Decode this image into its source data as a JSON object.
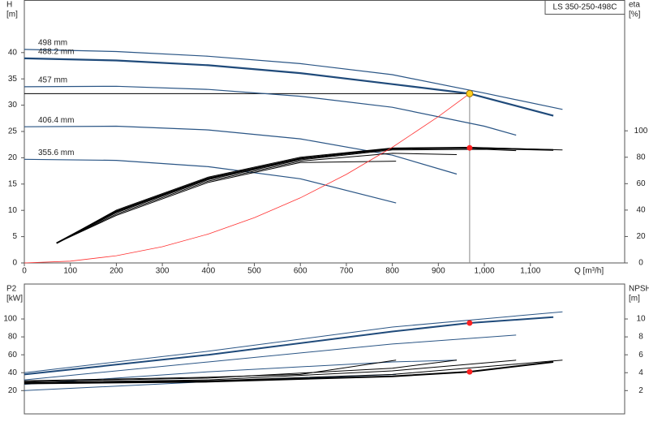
{
  "chart_data": [
    {
      "type": "line",
      "title": "LS 350-250-498C",
      "x_label": "Q [m³/h]",
      "y_label": [
        "H",
        "[m]"
      ],
      "y2_label": [
        "eta",
        "[%]"
      ],
      "xlim": [
        0,
        1305
      ],
      "xticks": [
        0,
        100,
        200,
        300,
        400,
        500,
        600,
        700,
        800,
        900,
        {
          "value": 1000,
          "label": "1,000"
        },
        {
          "value": 1100,
          "label": "1,100"
        }
      ],
      "ylim": [
        0,
        50
      ],
      "yticks": [
        0,
        5,
        10,
        15,
        20,
        25,
        30,
        35,
        40
      ],
      "y2lim": [
        0,
        199
      ],
      "y2ticks": [
        0,
        20,
        40,
        60,
        80,
        100
      ],
      "grid": false,
      "series": [
        {
          "name": "498 mm",
          "color": "#2a5585",
          "line_width": 1.2,
          "x": [
            0,
            200,
            400,
            600,
            800,
            1000,
            1170
          ],
          "values": [
            40.6,
            40.2,
            39.3,
            37.9,
            35.8,
            32.3,
            29.2
          ]
        },
        {
          "name": "488.2 mm",
          "color": "#1f4a7a",
          "line_width": 2.2,
          "x": [
            0,
            200,
            400,
            600,
            800,
            968,
            1150
          ],
          "values": [
            38.9,
            38.5,
            37.6,
            36.1,
            34.0,
            32.2,
            28.0
          ]
        },
        {
          "name": "457 mm",
          "color": "#2a5585",
          "line_width": 1.2,
          "x": [
            0,
            200,
            400,
            600,
            800,
            1000,
            1069
          ],
          "values": [
            33.5,
            33.6,
            33.0,
            31.7,
            29.6,
            26.0,
            24.3
          ]
        },
        {
          "name": "406.4 mm",
          "color": "#2a5585",
          "line_width": 1.2,
          "x": [
            0,
            200,
            400,
            600,
            800,
            940
          ],
          "values": [
            25.9,
            26.0,
            25.3,
            23.6,
            20.5,
            16.9
          ]
        },
        {
          "name": "355.6 mm",
          "color": "#2a5585",
          "line_width": 1.2,
          "x": [
            0,
            200,
            400,
            600,
            808
          ],
          "values": [
            19.7,
            19.5,
            18.3,
            16.0,
            11.4
          ]
        },
        {
          "color": "#000000",
          "axis": "y2",
          "line_width": 1,
          "x": [
            70,
            200,
            400,
            600,
            800,
            968,
            1170
          ],
          "values": [
            15,
            40,
            65,
            80,
            87,
            87.5,
            85.5
          ]
        },
        {
          "color": "#000000",
          "axis": "y2",
          "line_width": 2,
          "x": [
            70,
            200,
            400,
            600,
            800,
            968,
            1150
          ],
          "values": [
            15,
            39,
            64,
            79,
            86.5,
            87.1,
            85.5
          ]
        },
        {
          "color": "#000000",
          "axis": "y2",
          "line_width": 1,
          "x": [
            70,
            200,
            400,
            600,
            800,
            1000,
            1069
          ],
          "values": [
            15,
            38,
            63,
            78,
            85.5,
            86,
            85
          ]
        },
        {
          "color": "#000000",
          "axis": "y2",
          "line_width": 1,
          "x": [
            70,
            200,
            400,
            600,
            800,
            940
          ],
          "values": [
            15,
            37,
            62,
            77,
            83,
            82
          ]
        },
        {
          "color": "#000000",
          "axis": "y2",
          "line_width": 1,
          "x": [
            70,
            200,
            400,
            600,
            808
          ],
          "values": [
            15,
            36,
            61,
            76,
            77
          ]
        },
        {
          "color": "#ff3030",
          "line_width": 0.8,
          "x": [
            0,
            100,
            200,
            300,
            400,
            500,
            600,
            700,
            800,
            900,
            968
          ],
          "values": [
            0,
            0.34,
            1.37,
            3.09,
            5.5,
            8.59,
            12.37,
            16.84,
            21.99,
            27.83,
            32.2
          ]
        }
      ],
      "operating_point": {
        "Q": 968,
        "H": 32.2,
        "eta": 87.1
      }
    },
    {
      "type": "line",
      "y_label": [
        "P2",
        "[kW]"
      ],
      "y2_label": [
        "NPSH",
        "[m]"
      ],
      "xlim": [
        0,
        1305
      ],
      "ylim": [
        -6,
        139
      ],
      "yticks": [
        20,
        40,
        60,
        80,
        100
      ],
      "y2lim": [
        -0.6,
        13.9
      ],
      "y2ticks": [
        2,
        4,
        6,
        8,
        10
      ],
      "series": [
        {
          "color": "#2a5585",
          "line_width": 1,
          "x": [
            0,
            400,
            800,
            1170
          ],
          "values": [
            40,
            64,
            91,
            108
          ]
        },
        {
          "color": "#1f4a7a",
          "line_width": 2,
          "x": [
            0,
            400,
            800,
            968,
            1150
          ],
          "values": [
            38,
            60,
            86,
            95.5,
            102
          ]
        },
        {
          "color": "#2a5585",
          "line_width": 1,
          "x": [
            0,
            400,
            800,
            1069
          ],
          "values": [
            32,
            52,
            72,
            82
          ]
        },
        {
          "color": "#2a5585",
          "line_width": 1,
          "x": [
            0,
            400,
            800,
            940
          ],
          "values": [
            27,
            41,
            52,
            54
          ]
        },
        {
          "color": "#2a5585",
          "line_width": 1,
          "x": [
            0,
            400,
            808
          ],
          "values": [
            20,
            30,
            38
          ]
        },
        {
          "color": "#000000",
          "axis": "y2",
          "line_width": 1,
          "x": [
            0,
            400,
            800,
            1170
          ],
          "values": [
            2.9,
            3.1,
            3.8,
            5.4
          ]
        },
        {
          "color": "#000000",
          "axis": "y2",
          "line_width": 2,
          "x": [
            0,
            400,
            800,
            968,
            1150
          ],
          "values": [
            2.8,
            3.0,
            3.6,
            4.1,
            5.2
          ]
        },
        {
          "color": "#000000",
          "axis": "y2",
          "line_width": 1,
          "x": [
            0,
            400,
            800,
            1069
          ],
          "values": [
            2.9,
            3.2,
            4.2,
            5.4
          ]
        },
        {
          "color": "#000000",
          "axis": "y2",
          "line_width": 1,
          "x": [
            0,
            400,
            800,
            940
          ],
          "values": [
            3.0,
            3.4,
            4.5,
            5.4
          ]
        },
        {
          "color": "#000000",
          "axis": "y2",
          "line_width": 1,
          "x": [
            0,
            400,
            600,
            808
          ],
          "values": [
            3.1,
            3.5,
            3.8,
            5.4
          ]
        }
      ],
      "operating_point": {
        "P2": 95.5,
        "NPSH": 4.1
      }
    }
  ]
}
